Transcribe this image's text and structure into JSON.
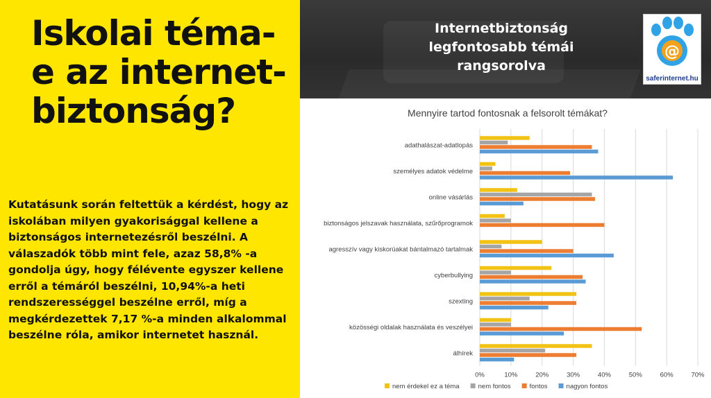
{
  "left_panel": {
    "headline": "Iskolai téma-e az internet-biztonság?",
    "body": "Kutatásunk során feltettük a kérdést, hogy az iskolában milyen gyakorisággal kellene a biztonságos internetezésről beszélni.  A válaszadók több mint fele, azaz 58,8% -a gondolja úgy, hogy félévente egyszer kellene erről a témáról beszélni, 10,94%-a heti rendszerességgel beszélne erről, míg a megkérdezettek 7,17 %-a minden alkalommal beszélne róla, amikor internetet használ."
  },
  "banner": {
    "title": "Internetbiztonság legfontosabb témái rangsorolva",
    "logo_text": "saferinternet.hu",
    "logo_icon": "paw-at-sign-icon"
  },
  "chart_data": {
    "type": "bar",
    "orientation": "horizontal",
    "title": "Mennyire tartod fontosnak a felsorolt témákat?",
    "categories": [
      "adathalászat-adatlopás",
      "személyes adatok védelme",
      "online vásárlás",
      "biztonságos jelszavak használata, szűrőprogramok",
      "agresszív vagy kiskorúakat bántalmazó tartalmak",
      "cyberbullying",
      "szexting",
      "közösségi oldalak használata és veszélyei",
      "álhírek"
    ],
    "series": [
      {
        "name": "nem érdekel ez a téma",
        "color": "#f2c314",
        "values": [
          0.16,
          0.05,
          0.12,
          0.08,
          0.2,
          0.23,
          0.31,
          0.1,
          0.36
        ]
      },
      {
        "name": "nem fontos",
        "color": "#a5a5a5",
        "values": [
          0.09,
          0.04,
          0.36,
          0.1,
          0.07,
          0.1,
          0.16,
          0.1,
          0.21
        ]
      },
      {
        "name": "fontos",
        "color": "#ed7d31",
        "values": [
          0.36,
          0.29,
          0.37,
          0.4,
          0.3,
          0.33,
          0.31,
          0.52,
          0.31
        ]
      },
      {
        "name": "nagyon fontos",
        "color": "#5b9bd5",
        "values": [
          0.38,
          0.62,
          0.14,
          0.0,
          0.43,
          0.34,
          0.22,
          0.27,
          0.11
        ]
      }
    ],
    "xticks": [
      "0%",
      "10%",
      "20%",
      "30%",
      "40%",
      "50%",
      "60%",
      "70%"
    ],
    "xlim": [
      0,
      0.7
    ],
    "grid": true,
    "legend_position": "bottom"
  }
}
